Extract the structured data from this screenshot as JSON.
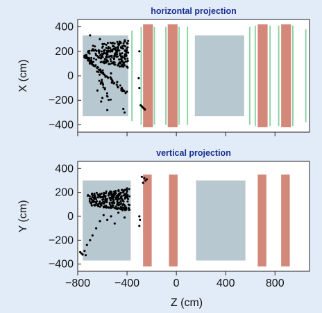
{
  "chart_data": [
    {
      "type": "scatter",
      "title": "horizontal projection",
      "xlabel": "",
      "ylabel": "X (cm)",
      "xlim": [
        -800,
        1080
      ],
      "ylim": [
        -460,
        460
      ],
      "yticks": [
        400,
        200,
        0,
        -200,
        -400
      ],
      "xticks": [
        -800,
        -400,
        0,
        400,
        800
      ],
      "colors": {
        "target": "#b8c8d0",
        "magnet": "#d4887a",
        "chamber": "#8fd4a8",
        "points": "#000000"
      },
      "target_block": {
        "x": [
          -760,
          -390
        ],
        "y": [
          -330,
          330
        ]
      },
      "gray_blocks": [
        {
          "x": [
            150,
            550
          ],
          "y": [
            -330,
            330
          ]
        }
      ],
      "red_blocks": [
        {
          "x": [
            -270,
            -190
          ],
          "y": [
            -420,
            420
          ]
        },
        {
          "x": [
            -70,
            10
          ],
          "y": [
            -420,
            420
          ]
        },
        {
          "x": [
            660,
            740
          ],
          "y": [
            -420,
            420
          ]
        },
        {
          "x": [
            850,
            930
          ],
          "y": [
            -420,
            420
          ]
        }
      ],
      "green_lines": [
        {
          "x": -360,
          "y": [
            -370,
            370
          ]
        },
        {
          "x": -285,
          "y": [
            -400,
            400
          ]
        },
        {
          "x": -178,
          "y": [
            -400,
            400
          ]
        },
        {
          "x": -85,
          "y": [
            -400,
            400
          ]
        },
        {
          "x": 22,
          "y": [
            -400,
            400
          ]
        },
        {
          "x": 90,
          "y": [
            -400,
            400
          ]
        },
        {
          "x": 595,
          "y": [
            -400,
            400
          ]
        },
        {
          "x": 640,
          "y": [
            -410,
            410
          ]
        },
        {
          "x": 760,
          "y": [
            -410,
            410
          ]
        },
        {
          "x": 830,
          "y": [
            -410,
            410
          ]
        },
        {
          "x": 945,
          "y": [
            -410,
            410
          ]
        },
        {
          "x": 1050,
          "y": [
            -380,
            380
          ]
        }
      ],
      "scatter_groups": [
        {
          "kind": "cloud",
          "x": [
            -740,
            -390
          ],
          "y": [
            60,
            300
          ],
          "count": 220,
          "seed": 11
        },
        {
          "kind": "band",
          "from": [
            -750,
            160
          ],
          "to": [
            -390,
            -150
          ],
          "count": 70,
          "seed": 5
        },
        {
          "kind": "band",
          "from": [
            -660,
            70
          ],
          "to": [
            -540,
            -200
          ],
          "count": 18,
          "seed": 7
        }
      ],
      "points": [
        [
          -700,
          330
        ],
        [
          -620,
          300
        ],
        [
          -560,
          -280
        ],
        [
          -430,
          -270
        ],
        [
          -420,
          -300
        ],
        [
          -300,
          200
        ],
        [
          -305,
          -20
        ],
        [
          -300,
          -100
        ],
        [
          -290,
          -240
        ],
        [
          -280,
          -250
        ],
        [
          -270,
          -260
        ],
        [
          -262,
          -268
        ],
        [
          -255,
          -275
        ],
        [
          -600,
          -180
        ],
        [
          -610,
          -210
        ],
        [
          -640,
          -120
        ],
        [
          -530,
          20
        ],
        [
          -480,
          -50
        ],
        [
          -500,
          220
        ],
        [
          -420,
          280
        ],
        [
          -690,
          120
        ],
        [
          -730,
          170
        ]
      ]
    },
    {
      "type": "scatter",
      "title": "vertical projection",
      "xlabel": "Z (cm)",
      "ylabel": "Y (cm)",
      "xlim": [
        -800,
        1080
      ],
      "ylim": [
        -460,
        460
      ],
      "yticks": [
        400,
        200,
        0,
        -200,
        -400
      ],
      "xticks": [
        -800,
        -400,
        0,
        400,
        800
      ],
      "colors": {
        "target": "#b8c8d0",
        "magnet": "#d4887a",
        "chamber": "#8fd4a8",
        "points": "#000000"
      },
      "target_block": {
        "x": [
          -760,
          -370
        ],
        "y": [
          -370,
          300
        ]
      },
      "gray_blocks": [
        {
          "x": [
            160,
            560
          ],
          "y": [
            -370,
            300
          ]
        }
      ],
      "red_blocks": [
        {
          "x": [
            -270,
            -200
          ],
          "y": [
            -420,
            350
          ]
        },
        {
          "x": 0,
          "y": [
            0,
            0
          ],
          "skip": true
        },
        {
          "x": [
            -60,
            10
          ],
          "y": [
            -420,
            350
          ]
        },
        {
          "x": [
            660,
            730
          ],
          "y": [
            -420,
            350
          ]
        },
        {
          "x": [
            850,
            920
          ],
          "y": [
            -420,
            350
          ]
        }
      ],
      "green_lines": [],
      "scatter_groups": [
        {
          "kind": "cloud",
          "x": [
            -720,
            -380
          ],
          "y": [
            40,
            240
          ],
          "count": 260,
          "seed": 23
        }
      ],
      "points": [
        [
          -780,
          -300
        ],
        [
          -770,
          -310
        ],
        [
          -760,
          -320
        ],
        [
          -745,
          -290
        ],
        [
          -735,
          -325
        ],
        [
          -725,
          -240
        ],
        [
          -700,
          -200
        ],
        [
          -680,
          -160
        ],
        [
          -650,
          -100
        ],
        [
          -620,
          -40
        ],
        [
          -590,
          10
        ],
        [
          -560,
          -30
        ],
        [
          -530,
          0
        ],
        [
          -500,
          -60
        ],
        [
          -470,
          30
        ],
        [
          -440,
          60
        ],
        [
          -420,
          -10
        ],
        [
          -300,
          0
        ],
        [
          -295,
          -30
        ],
        [
          -300,
          -80
        ],
        [
          -280,
          330
        ],
        [
          -260,
          320
        ],
        [
          -250,
          300
        ],
        [
          -240,
          310
        ],
        [
          -270,
          280
        ]
      ]
    }
  ]
}
